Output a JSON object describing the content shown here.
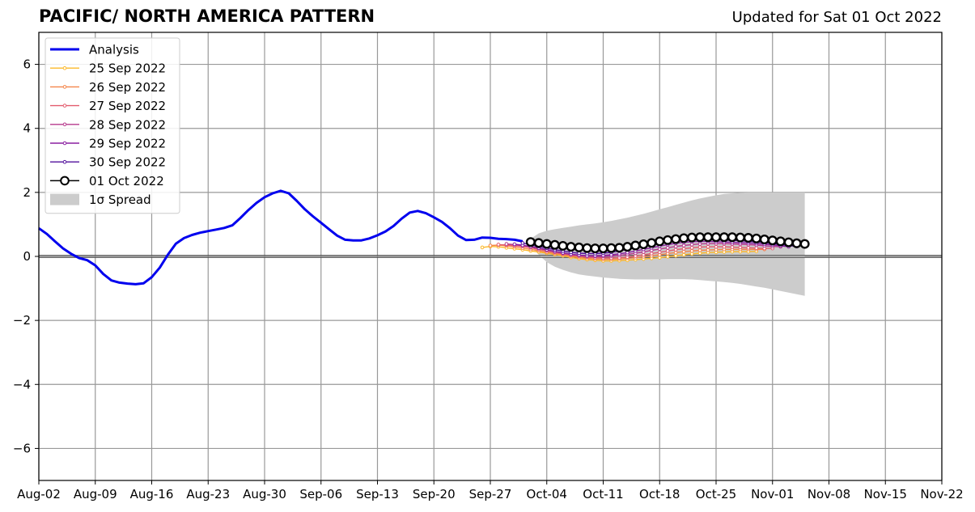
{
  "title": "PACIFIC/ NORTH AMERICA PATTERN",
  "updated": "Updated for Sat 01 Oct 2022",
  "chart_data": {
    "type": "line",
    "x_unit": "date",
    "xlim": [
      "2022-08-02",
      "2022-11-22"
    ],
    "ylim": [
      -7,
      7
    ],
    "grid": true,
    "legend_position": "top-left",
    "x_ticks": [
      "Aug-02",
      "Aug-09",
      "Aug-16",
      "Aug-23",
      "Aug-30",
      "Sep-06",
      "Sep-13",
      "Sep-20",
      "Sep-27",
      "Oct-04",
      "Oct-11",
      "Oct-18",
      "Oct-25",
      "Nov-01",
      "Nov-08",
      "Nov-15",
      "Nov-22"
    ],
    "x_tick_dates": [
      "2022-08-02",
      "2022-08-09",
      "2022-08-16",
      "2022-08-23",
      "2022-08-30",
      "2022-09-06",
      "2022-09-13",
      "2022-09-20",
      "2022-09-27",
      "2022-10-04",
      "2022-10-11",
      "2022-10-18",
      "2022-10-25",
      "2022-11-01",
      "2022-11-08",
      "2022-11-15",
      "2022-11-22"
    ],
    "y_ticks": [
      "−6",
      "−4",
      "−2",
      "0",
      "2",
      "4",
      "6"
    ],
    "y_tick_values": [
      -6,
      -4,
      -2,
      0,
      2,
      4,
      6
    ],
    "series": [
      {
        "name": "Analysis",
        "color": "#0000ee",
        "style": "thick-line",
        "points": [
          [
            "2022-08-02",
            0.88
          ],
          [
            "2022-08-03",
            0.7
          ],
          [
            "2022-08-04",
            0.47
          ],
          [
            "2022-08-05",
            0.25
          ],
          [
            "2022-08-06",
            0.08
          ],
          [
            "2022-08-07",
            -0.05
          ],
          [
            "2022-08-08",
            -0.12
          ],
          [
            "2022-08-09",
            -0.28
          ],
          [
            "2022-08-10",
            -0.55
          ],
          [
            "2022-08-11",
            -0.75
          ],
          [
            "2022-08-12",
            -0.82
          ],
          [
            "2022-08-13",
            -0.85
          ],
          [
            "2022-08-14",
            -0.87
          ],
          [
            "2022-08-15",
            -0.84
          ],
          [
            "2022-08-16",
            -0.65
          ],
          [
            "2022-08-17",
            -0.35
          ],
          [
            "2022-08-18",
            0.05
          ],
          [
            "2022-08-19",
            0.4
          ],
          [
            "2022-08-20",
            0.57
          ],
          [
            "2022-08-21",
            0.67
          ],
          [
            "2022-08-22",
            0.74
          ],
          [
            "2022-08-23",
            0.79
          ],
          [
            "2022-08-24",
            0.84
          ],
          [
            "2022-08-25",
            0.89
          ],
          [
            "2022-08-26",
            0.97
          ],
          [
            "2022-08-27",
            1.2
          ],
          [
            "2022-08-28",
            1.45
          ],
          [
            "2022-08-29",
            1.67
          ],
          [
            "2022-08-30",
            1.85
          ],
          [
            "2022-08-31",
            1.97
          ],
          [
            "2022-09-01",
            2.05
          ],
          [
            "2022-09-02",
            1.97
          ],
          [
            "2022-09-03",
            1.73
          ],
          [
            "2022-09-04",
            1.47
          ],
          [
            "2022-09-05",
            1.25
          ],
          [
            "2022-09-06",
            1.05
          ],
          [
            "2022-09-07",
            0.85
          ],
          [
            "2022-09-08",
            0.65
          ],
          [
            "2022-09-09",
            0.52
          ],
          [
            "2022-09-10",
            0.5
          ],
          [
            "2022-09-11",
            0.5
          ],
          [
            "2022-09-12",
            0.56
          ],
          [
            "2022-09-13",
            0.66
          ],
          [
            "2022-09-14",
            0.78
          ],
          [
            "2022-09-15",
            0.95
          ],
          [
            "2022-09-16",
            1.18
          ],
          [
            "2022-09-17",
            1.37
          ],
          [
            "2022-09-18",
            1.42
          ],
          [
            "2022-09-19",
            1.35
          ],
          [
            "2022-09-20",
            1.22
          ],
          [
            "2022-09-21",
            1.08
          ],
          [
            "2022-09-22",
            0.88
          ],
          [
            "2022-09-23",
            0.65
          ],
          [
            "2022-09-24",
            0.51
          ],
          [
            "2022-09-25",
            0.52
          ],
          [
            "2022-09-26",
            0.59
          ],
          [
            "2022-09-27",
            0.58
          ],
          [
            "2022-09-28",
            0.55
          ],
          [
            "2022-09-29",
            0.54
          ],
          [
            "2022-09-30",
            0.52
          ],
          [
            "2022-10-01",
            0.47
          ]
        ]
      },
      {
        "name": "25 Sep 2022",
        "color": "#fbb829",
        "start": "2022-09-26",
        "step_days": 1,
        "values": [
          0.28,
          0.31,
          0.3,
          0.27,
          0.24,
          0.21,
          0.17,
          0.14,
          0.1,
          0.06,
          0.02,
          -0.03,
          -0.07,
          -0.1,
          -0.12,
          -0.14,
          -0.14,
          -0.13,
          -0.12,
          -0.1,
          -0.08,
          -0.06,
          -0.04,
          -0.01,
          0.02,
          0.05,
          0.08,
          0.1,
          0.12,
          0.13,
          0.14,
          0.15,
          0.15,
          0.15,
          0.16
        ]
      },
      {
        "name": "26 Sep 2022",
        "color": "#f4854a",
        "start": "2022-09-27",
        "step_days": 1,
        "values": [
          0.34,
          0.35,
          0.33,
          0.3,
          0.26,
          0.22,
          0.18,
          0.13,
          0.09,
          0.05,
          0.01,
          -0.03,
          -0.06,
          -0.08,
          -0.09,
          -0.09,
          -0.08,
          -0.06,
          -0.04,
          -0.01,
          0.02,
          0.05,
          0.09,
          0.12,
          0.15,
          0.17,
          0.19,
          0.2,
          0.21,
          0.22,
          0.22,
          0.22,
          0.22,
          0.22,
          0.22
        ]
      },
      {
        "name": "27 Sep 2022",
        "color": "#e35c6e",
        "start": "2022-09-28",
        "step_days": 1,
        "values": [
          0.37,
          0.36,
          0.34,
          0.31,
          0.27,
          0.22,
          0.17,
          0.12,
          0.08,
          0.04,
          0.01,
          -0.02,
          -0.04,
          -0.05,
          -0.05,
          -0.04,
          -0.02,
          0.01,
          0.05,
          0.09,
          0.13,
          0.17,
          0.21,
          0.24,
          0.27,
          0.29,
          0.3,
          0.3,
          0.3,
          0.29,
          0.28,
          0.27,
          0.26,
          0.25,
          0.25
        ]
      },
      {
        "name": "28 Sep 2022",
        "color": "#b63a8c",
        "start": "2022-09-29",
        "step_days": 1,
        "values": [
          0.39,
          0.37,
          0.34,
          0.3,
          0.25,
          0.2,
          0.15,
          0.1,
          0.06,
          0.03,
          0.01,
          0.0,
          0.0,
          0.01,
          0.03,
          0.06,
          0.1,
          0.14,
          0.19,
          0.23,
          0.27,
          0.31,
          0.34,
          0.37,
          0.39,
          0.4,
          0.4,
          0.4,
          0.39,
          0.38,
          0.37,
          0.35,
          0.33,
          0.31,
          0.3
        ]
      },
      {
        "name": "29 Sep 2022",
        "color": "#8a1fa0",
        "start": "2022-09-30",
        "step_days": 1,
        "values": [
          0.38,
          0.35,
          0.31,
          0.26,
          0.21,
          0.16,
          0.11,
          0.07,
          0.04,
          0.02,
          0.02,
          0.03,
          0.05,
          0.08,
          0.12,
          0.17,
          0.22,
          0.27,
          0.32,
          0.37,
          0.41,
          0.44,
          0.46,
          0.47,
          0.47,
          0.46,
          0.45,
          0.44,
          0.43,
          0.42,
          0.4,
          0.38,
          0.36,
          0.33,
          0.3
        ]
      },
      {
        "name": "30 Sep 2022",
        "color": "#52109c",
        "start": "2022-10-01",
        "step_days": 1,
        "values": [
          0.42,
          0.36,
          0.31,
          0.26,
          0.21,
          0.17,
          0.13,
          0.1,
          0.09,
          0.09,
          0.1,
          0.13,
          0.17,
          0.22,
          0.27,
          0.32,
          0.37,
          0.42,
          0.46,
          0.49,
          0.51,
          0.52,
          0.53,
          0.53,
          0.52,
          0.51,
          0.5,
          0.49,
          0.47,
          0.45,
          0.43,
          0.4,
          0.37,
          0.34,
          0.31
        ]
      },
      {
        "name": "01 Oct 2022",
        "color": "#000000",
        "style": "big-markers",
        "start": "2022-10-02",
        "step_days": 1,
        "values": [
          0.45,
          0.42,
          0.39,
          0.36,
          0.33,
          0.3,
          0.28,
          0.26,
          0.25,
          0.25,
          0.26,
          0.27,
          0.3,
          0.34,
          0.38,
          0.42,
          0.47,
          0.51,
          0.54,
          0.57,
          0.59,
          0.6,
          0.6,
          0.6,
          0.6,
          0.6,
          0.59,
          0.58,
          0.56,
          0.53,
          0.5,
          0.47,
          0.44,
          0.41,
          0.39
        ]
      }
    ],
    "spread": {
      "name": "1σ Spread",
      "color": "#cccccc",
      "start": "2022-10-02",
      "step_days": 1,
      "upper": [
        0.55,
        0.72,
        0.8,
        0.85,
        0.89,
        0.93,
        0.97,
        1.0,
        1.03,
        1.07,
        1.11,
        1.16,
        1.21,
        1.27,
        1.33,
        1.4,
        1.47,
        1.54,
        1.61,
        1.68,
        1.75,
        1.81,
        1.86,
        1.91,
        1.95,
        1.97,
        1.99,
        2.0,
        2.0,
        2.0,
        2.0,
        2.0,
        2.0,
        2.0,
        2.0
      ],
      "lower": [
        0.35,
        0.05,
        -0.18,
        -0.32,
        -0.42,
        -0.5,
        -0.56,
        -0.6,
        -0.63,
        -0.66,
        -0.68,
        -0.7,
        -0.71,
        -0.72,
        -0.72,
        -0.72,
        -0.72,
        -0.71,
        -0.71,
        -0.71,
        -0.72,
        -0.74,
        -0.76,
        -0.78,
        -0.8,
        -0.83,
        -0.86,
        -0.9,
        -0.94,
        -0.98,
        -1.03,
        -1.08,
        -1.13,
        -1.18,
        -1.23
      ]
    }
  }
}
